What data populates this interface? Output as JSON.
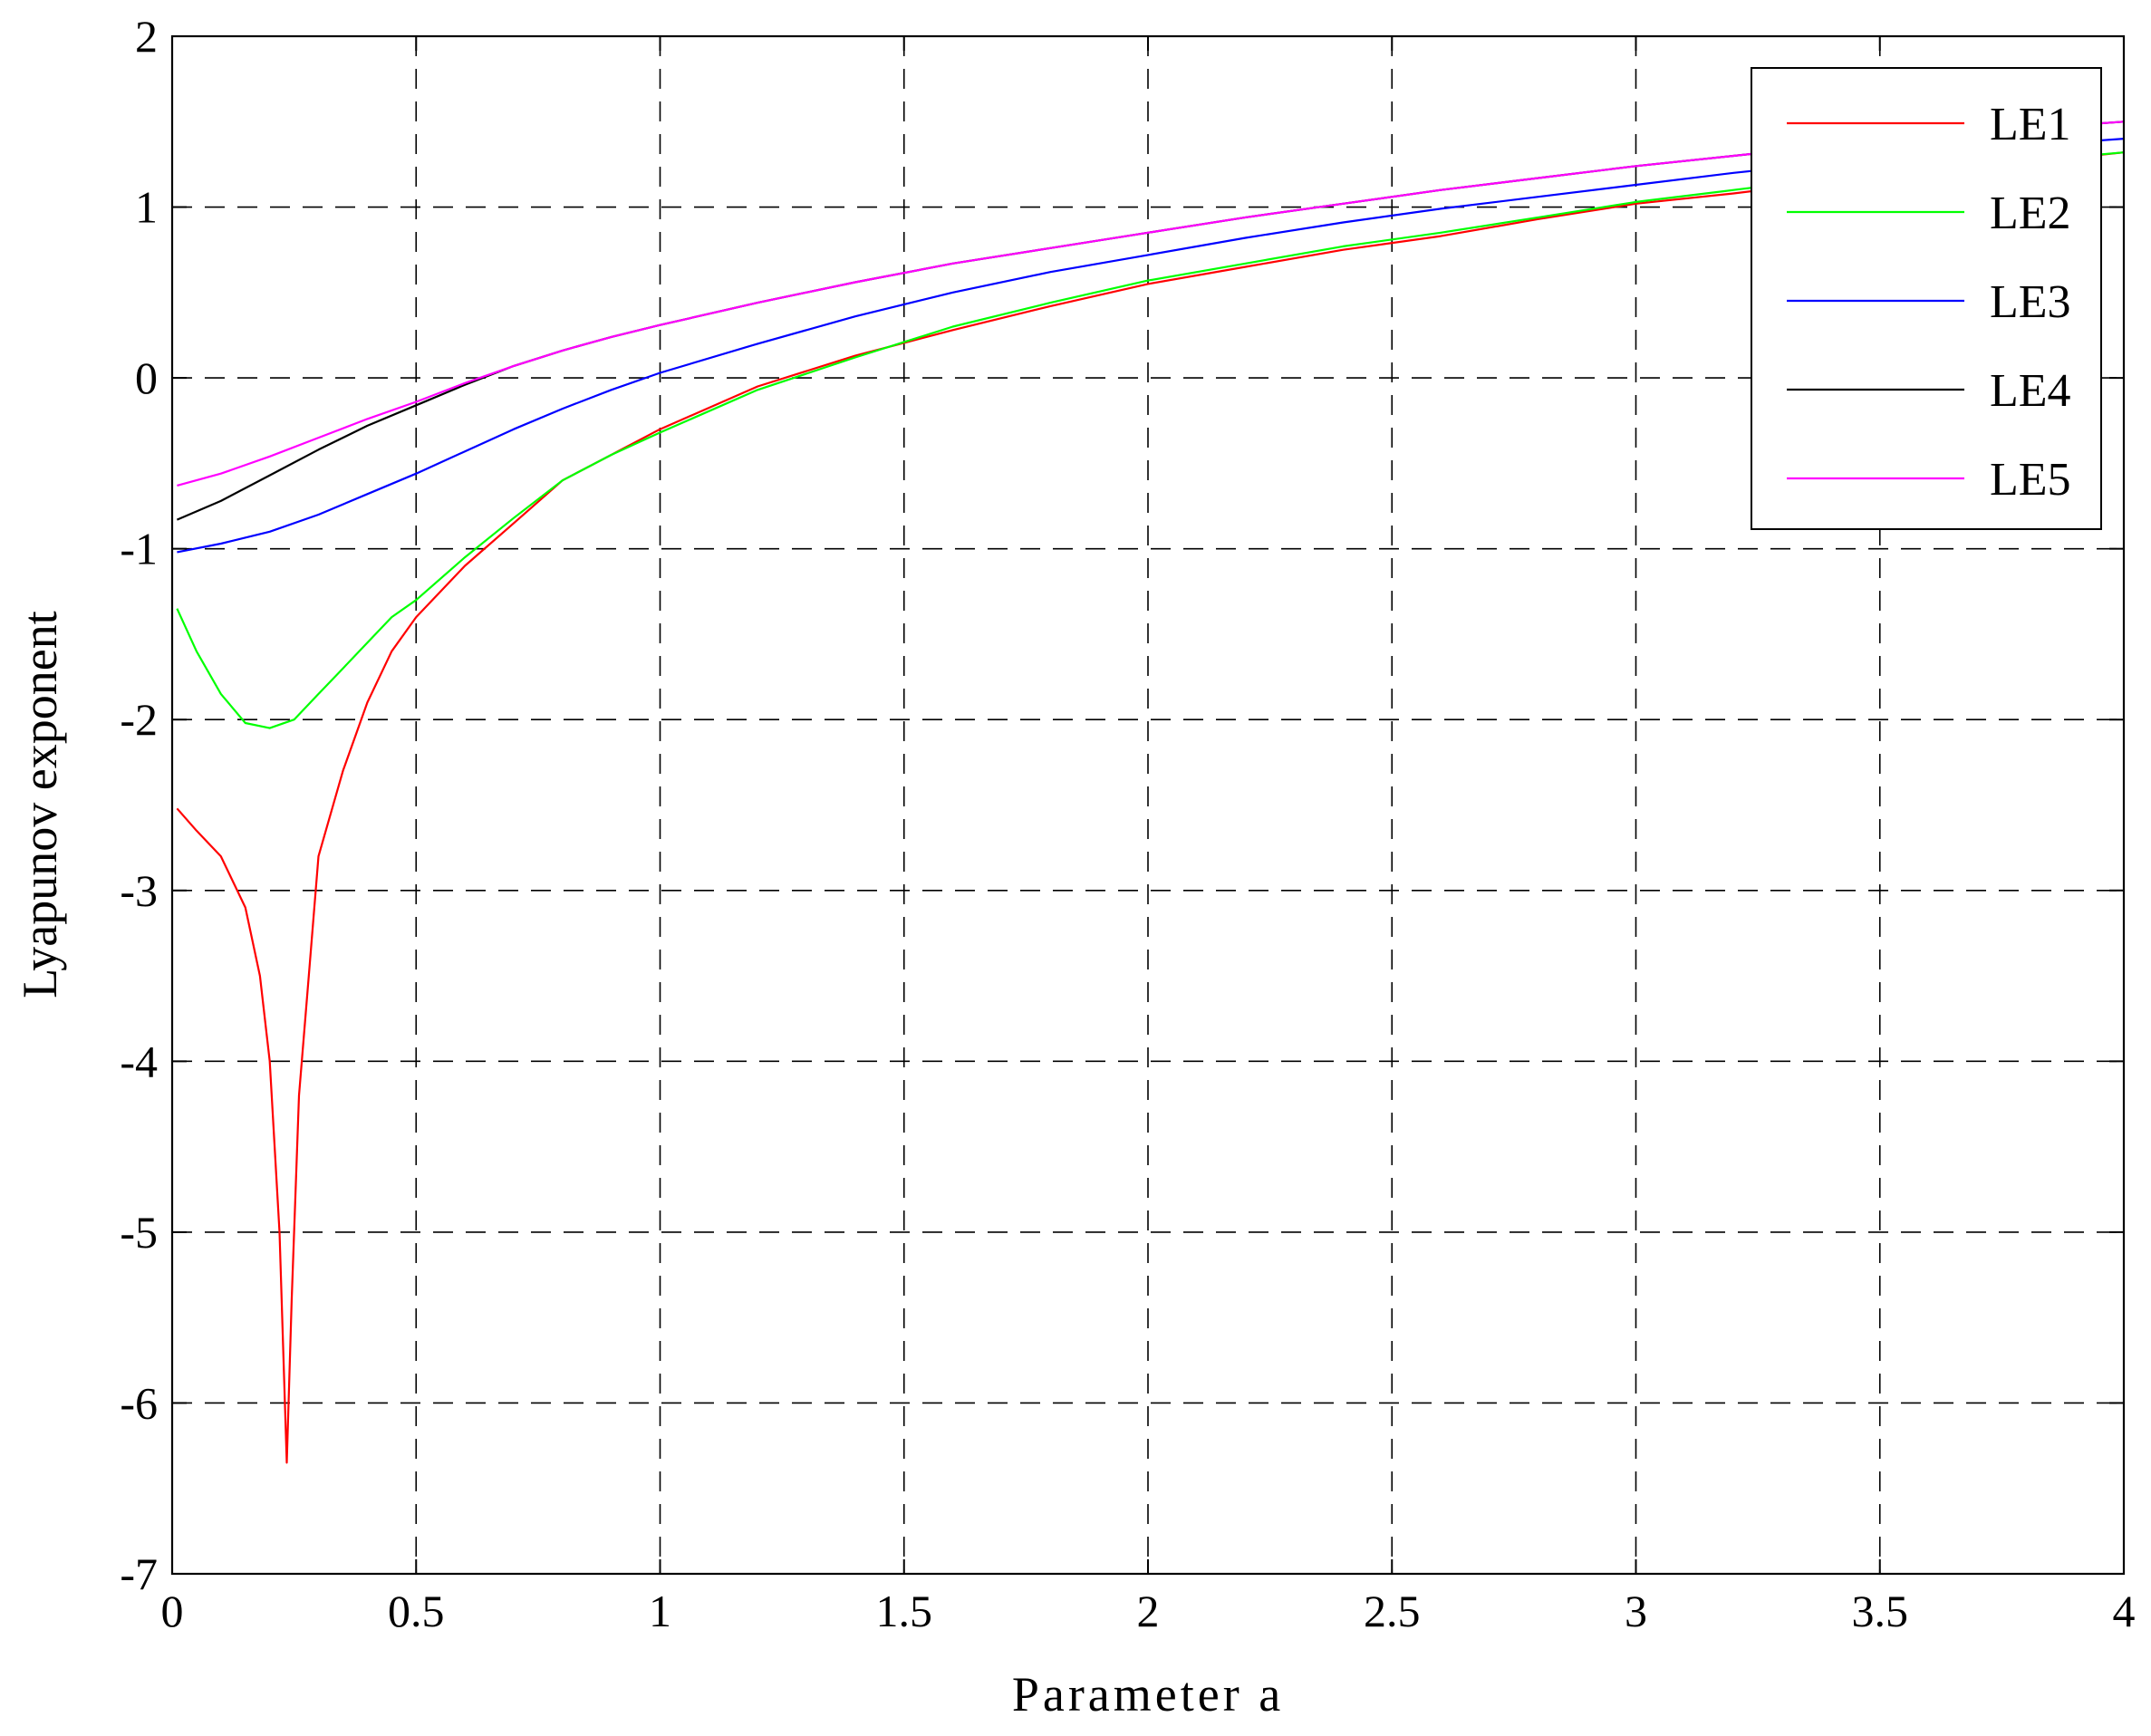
{
  "chart_data": {
    "type": "line",
    "xlabel": "Parameter a",
    "ylabel": "Lyapunov exponent",
    "xlim": [
      0,
      4
    ],
    "ylim": [
      -7,
      2
    ],
    "xticks": [
      0,
      0.5,
      1,
      1.5,
      2,
      2.5,
      3,
      3.5,
      4
    ],
    "xtick_labels": [
      "0",
      "0.5",
      "1",
      "1.5",
      "2",
      "2.5",
      "3",
      "3.5",
      "4"
    ],
    "yticks": [
      -7,
      -6,
      -5,
      -4,
      -3,
      -2,
      -1,
      0,
      1,
      2
    ],
    "ytick_labels": [
      "-7",
      "-6",
      "-5",
      "-4",
      "-3",
      "-2",
      "-1",
      "0",
      "1",
      "2"
    ],
    "grid": true,
    "legend_position": "top-right",
    "series": [
      {
        "name": "LE1",
        "color": "#ff0000",
        "x": [
          0.01,
          0.05,
          0.1,
          0.15,
          0.18,
          0.2,
          0.22,
          0.235,
          0.245,
          0.26,
          0.28,
          0.3,
          0.35,
          0.4,
          0.45,
          0.5,
          0.6,
          0.7,
          0.8,
          0.9,
          1.0,
          1.2,
          1.4,
          1.6,
          1.8,
          2.0,
          2.2,
          2.4,
          2.6,
          2.8,
          3.0,
          3.2,
          3.4,
          3.6,
          3.8,
          4.0
        ],
        "y": [
          -2.52,
          -2.65,
          -2.8,
          -3.1,
          -3.5,
          -4.0,
          -5.0,
          -6.35,
          -5.4,
          -4.2,
          -3.5,
          -2.8,
          -2.3,
          -1.9,
          -1.6,
          -1.4,
          -1.1,
          -0.85,
          -0.6,
          -0.45,
          -0.3,
          -0.05,
          0.13,
          0.28,
          0.42,
          0.55,
          0.65,
          0.75,
          0.83,
          0.93,
          1.02,
          1.08,
          1.15,
          1.2,
          1.26,
          1.32
        ]
      },
      {
        "name": "LE2",
        "color": "#00ff00",
        "x": [
          0.01,
          0.05,
          0.1,
          0.15,
          0.2,
          0.25,
          0.3,
          0.35,
          0.4,
          0.45,
          0.5,
          0.6,
          0.7,
          0.8,
          0.9,
          1.0,
          1.2,
          1.4,
          1.6,
          1.8,
          2.0,
          2.2,
          2.4,
          2.6,
          2.8,
          3.0,
          3.2,
          3.4,
          3.6,
          3.8,
          4.0
        ],
        "y": [
          -1.35,
          -1.6,
          -1.85,
          -2.02,
          -2.05,
          -2.0,
          -1.85,
          -1.7,
          -1.55,
          -1.4,
          -1.3,
          -1.05,
          -0.82,
          -0.6,
          -0.45,
          -0.32,
          -0.07,
          0.12,
          0.3,
          0.44,
          0.57,
          0.67,
          0.77,
          0.85,
          0.94,
          1.03,
          1.1,
          1.17,
          1.22,
          1.27,
          1.32
        ]
      },
      {
        "name": "LE3",
        "color": "#0000ff",
        "x": [
          0.01,
          0.1,
          0.2,
          0.3,
          0.4,
          0.5,
          0.6,
          0.7,
          0.8,
          0.9,
          1.0,
          1.2,
          1.4,
          1.6,
          1.8,
          2.0,
          2.2,
          2.4,
          2.6,
          2.8,
          3.0,
          3.2,
          3.4,
          3.6,
          3.8,
          4.0
        ],
        "y": [
          -1.02,
          -0.97,
          -0.9,
          -0.8,
          -0.68,
          -0.56,
          -0.43,
          -0.3,
          -0.18,
          -0.07,
          0.03,
          0.2,
          0.36,
          0.5,
          0.62,
          0.72,
          0.82,
          0.91,
          0.99,
          1.06,
          1.13,
          1.2,
          1.26,
          1.31,
          1.36,
          1.4
        ]
      },
      {
        "name": "LE4",
        "color": "#000000",
        "x": [
          0.01,
          0.1,
          0.2,
          0.3,
          0.4,
          0.5,
          0.6,
          0.7,
          0.8,
          0.9,
          1.0,
          1.2,
          1.4,
          1.6,
          1.8,
          2.0,
          2.2,
          2.4,
          2.6,
          2.8,
          3.0,
          3.2,
          3.4,
          3.6,
          3.8,
          4.0
        ],
        "y": [
          -0.83,
          -0.72,
          -0.57,
          -0.42,
          -0.28,
          -0.16,
          -0.04,
          0.07,
          0.16,
          0.24,
          0.31,
          0.44,
          0.56,
          0.67,
          0.76,
          0.85,
          0.94,
          1.02,
          1.1,
          1.17,
          1.24,
          1.3,
          1.36,
          1.42,
          1.46,
          1.5
        ]
      },
      {
        "name": "LE5",
        "color": "#ff00ff",
        "x": [
          0.01,
          0.1,
          0.2,
          0.3,
          0.4,
          0.5,
          0.6,
          0.7,
          0.8,
          0.9,
          1.0,
          1.2,
          1.4,
          1.6,
          1.8,
          2.0,
          2.2,
          2.4,
          2.6,
          2.8,
          3.0,
          3.2,
          3.4,
          3.6,
          3.8,
          4.0
        ],
        "y": [
          -0.63,
          -0.56,
          -0.46,
          -0.35,
          -0.24,
          -0.14,
          -0.03,
          0.07,
          0.16,
          0.24,
          0.31,
          0.44,
          0.56,
          0.67,
          0.76,
          0.85,
          0.94,
          1.02,
          1.1,
          1.17,
          1.24,
          1.3,
          1.36,
          1.42,
          1.46,
          1.5
        ]
      }
    ]
  }
}
